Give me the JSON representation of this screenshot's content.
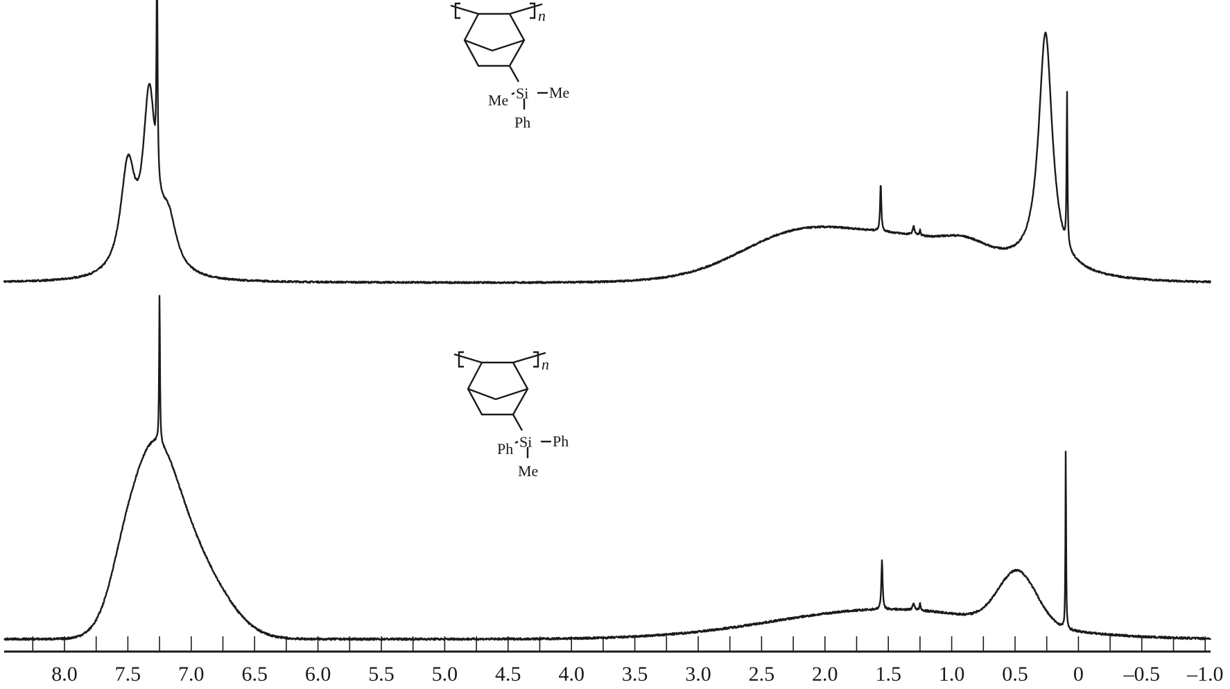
{
  "chart_data": {
    "type": "line",
    "title": "",
    "xlabel": "",
    "ylabel": "",
    "xlim": [
      8.3,
      -1.05
    ],
    "x_reversed": true,
    "grid": false,
    "x_ticks": [
      "8.0",
      "7.5",
      "7.0",
      "6.5",
      "6.0",
      "5.5",
      "5.0",
      "4.5",
      "4.0",
      "3.5",
      "3.0",
      "2.5",
      "2.0",
      "1.5",
      "1.0",
      "0.5",
      "0",
      "–0.5",
      "–1.0"
    ],
    "x_tick_values": [
      8.0,
      7.5,
      7.0,
      6.5,
      6.0,
      5.5,
      5.0,
      4.5,
      4.0,
      3.5,
      3.0,
      2.5,
      2.0,
      1.5,
      1.0,
      0.5,
      0,
      -0.5,
      -1.0
    ],
    "minor_tick_step": 0.25,
    "line_color": "#1a1a1a",
    "spectra": [
      {
        "panel": "top",
        "structure": {
          "substituent_left": "Me",
          "center": "Si",
          "substituent_right": "Me",
          "substituent_bottom": "Ph",
          "repeat": "n"
        },
        "sharp_peaks_ppm_rel_intensity": [
          [
            7.27,
            0.75,
            0.005
          ],
          [
            1.56,
            0.17,
            0.006
          ],
          [
            1.3,
            0.03,
            0.01
          ],
          [
            1.25,
            0.02,
            0.005
          ],
          [
            0.09,
            0.55,
            0.004
          ]
        ],
        "broad_peaks_ppm_rel_intensity_width": [
          [
            7.33,
            0.62,
            0.06
          ],
          [
            7.5,
            0.38,
            0.07
          ],
          [
            7.18,
            0.18,
            0.08
          ],
          [
            0.26,
            0.85,
            0.065
          ]
        ],
        "humps_ppm_rel_intensity_sigma": [
          [
            1.5,
            0.17,
            0.8
          ],
          [
            2.3,
            0.08,
            0.4
          ],
          [
            0.9,
            0.03,
            0.15
          ]
        ]
      },
      {
        "panel": "bottom",
        "structure": {
          "substituent_left": "Ph",
          "center": "Si",
          "substituent_right": "Ph",
          "substituent_bottom": "Me",
          "repeat": "n"
        },
        "sharp_peaks_ppm_rel_intensity": [
          [
            7.25,
            0.45,
            0.004
          ],
          [
            1.55,
            0.15,
            0.006
          ],
          [
            1.3,
            0.02,
            0.01
          ],
          [
            1.25,
            0.02,
            0.005
          ],
          [
            0.1,
            0.56,
            0.003
          ]
        ],
        "broad_peaks_ppm_rel_intensity_width": [],
        "humps_ppm_rel_intensity_sigma": [
          [
            7.32,
            0.5,
            0.2
          ],
          [
            6.98,
            0.22,
            0.25
          ],
          [
            7.55,
            0.05,
            0.1
          ],
          [
            0.48,
            0.16,
            0.15
          ],
          [
            1.5,
            0.09,
            0.9
          ]
        ]
      }
    ]
  }
}
